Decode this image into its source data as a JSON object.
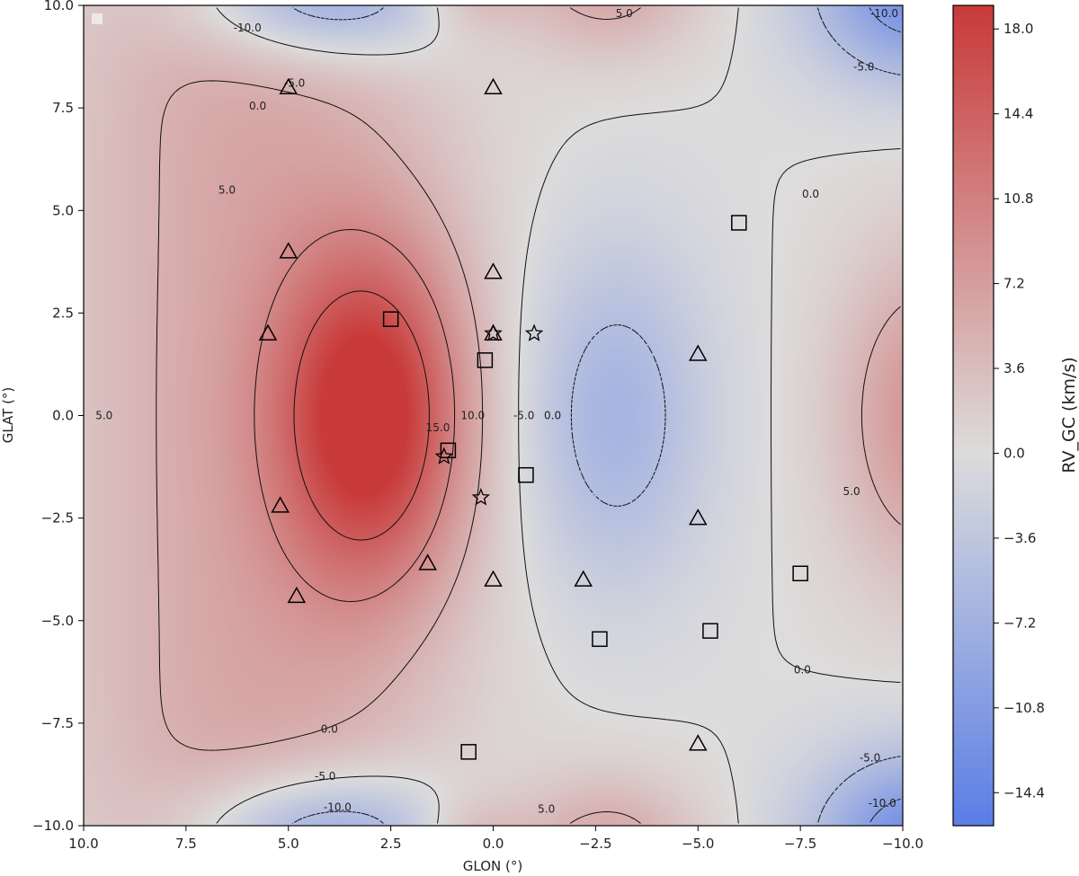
{
  "chart_data": {
    "type": "heatmap",
    "title": "",
    "xlabel": "GLON (°)",
    "ylabel": "GLAT (°)",
    "xlim": [
      10.0,
      -10.0
    ],
    "ylim": [
      -10.0,
      10.0
    ],
    "x_ticks": [
      "10.0",
      "7.5",
      "5.0",
      "2.5",
      "0.0",
      "−2.5",
      "−5.0",
      "−7.5",
      "−10.0"
    ],
    "x_tick_values": [
      10,
      7.5,
      5,
      2.5,
      0,
      -2.5,
      -5,
      -7.5,
      -10
    ],
    "y_ticks": [
      "10.0",
      "7.5",
      "5.0",
      "2.5",
      "0.0",
      "−2.5",
      "−5.0",
      "−7.5",
      "−10.0"
    ],
    "y_tick_values": [
      10,
      7.5,
      5,
      2.5,
      0,
      -2.5,
      -5,
      -7.5,
      -10
    ],
    "colorbar": {
      "label": "RV_GC (km/s)",
      "range": [
        -15.8,
        19.0
      ],
      "colormap": [
        "#5b7ee6",
        "#dddcdc",
        "#c93a3a"
      ],
      "ticks": [
        "18.0",
        "14.4",
        "10.8",
        "7.2",
        "3.6",
        "0.0",
        "−3.6",
        "−7.2",
        "−10.8",
        "−14.4"
      ],
      "tick_values": [
        18.0,
        14.4,
        10.8,
        7.2,
        3.6,
        0.0,
        -3.6,
        -7.2,
        -10.8,
        -14.4
      ]
    },
    "contour_levels": [
      -10,
      -5,
      0,
      5,
      10,
      15
    ],
    "contour_labels": [
      {
        "text": "-10.0",
        "x": 6.0,
        "y": 9.45
      },
      {
        "text": "-5.0",
        "x": 4.85,
        "y": 8.1
      },
      {
        "text": "0.0",
        "x": 5.75,
        "y": 7.55
      },
      {
        "text": "5.0",
        "x": 6.5,
        "y": 5.5
      },
      {
        "text": "10.0",
        "x": 0.5,
        "y": 0.0
      },
      {
        "text": "15.0",
        "x": 1.35,
        "y": -0.3
      },
      {
        "text": "5.0",
        "x": 9.5,
        "y": 0.0
      },
      {
        "text": "-5.0",
        "x": -0.75,
        "y": 0.0
      },
      {
        "text": "0.0",
        "x": -1.45,
        "y": 0.0
      },
      {
        "text": "5.0",
        "x": -8.75,
        "y": -1.85
      },
      {
        "text": "0.0",
        "x": -7.75,
        "y": 5.4
      },
      {
        "text": "0.0",
        "x": -7.55,
        "y": -6.2
      },
      {
        "text": "5.0",
        "x": -3.2,
        "y": 9.8
      },
      {
        "text": "-5.0",
        "x": -9.05,
        "y": 8.5
      },
      {
        "text": "-10.0",
        "x": -9.55,
        "y": 9.8
      },
      {
        "text": "0.0",
        "x": 4.0,
        "y": -7.65
      },
      {
        "text": "-5.0",
        "x": 4.1,
        "y": -8.8
      },
      {
        "text": "-10.0",
        "x": 3.8,
        "y": -9.55
      },
      {
        "text": "5.0",
        "x": -1.3,
        "y": -9.6
      },
      {
        "text": "-5.0",
        "x": -9.2,
        "y": -8.35
      },
      {
        "text": "-10.0",
        "x": -9.5,
        "y": -9.45
      }
    ],
    "markers": {
      "triangles": [
        [
          5.0,
          8.0
        ],
        [
          0.0,
          8.0
        ],
        [
          5.0,
          4.0
        ],
        [
          0.0,
          3.5
        ],
        [
          5.5,
          2.0
        ],
        [
          0.0,
          2.0
        ],
        [
          5.2,
          -2.2
        ],
        [
          1.6,
          -3.6
        ],
        [
          4.8,
          -4.4
        ],
        [
          0.0,
          -4.0
        ],
        [
          -2.2,
          -4.0
        ],
        [
          -5.0,
          1.5
        ],
        [
          -5.0,
          -2.5
        ],
        [
          -5.0,
          -8.0
        ]
      ],
      "squares": [
        [
          -6.0,
          4.7
        ],
        [
          2.5,
          2.35
        ],
        [
          0.2,
          1.35
        ],
        [
          1.1,
          -0.85
        ],
        [
          -0.8,
          -1.45
        ],
        [
          -2.6,
          -5.45
        ],
        [
          -5.3,
          -5.25
        ],
        [
          -7.5,
          -3.85
        ],
        [
          0.6,
          -8.2
        ]
      ],
      "stars": [
        [
          0.0,
          2.0
        ],
        [
          -1.0,
          2.0
        ],
        [
          1.2,
          -1.0
        ],
        [
          0.3,
          -2.0
        ]
      ]
    },
    "legend_placement": "top-left"
  }
}
